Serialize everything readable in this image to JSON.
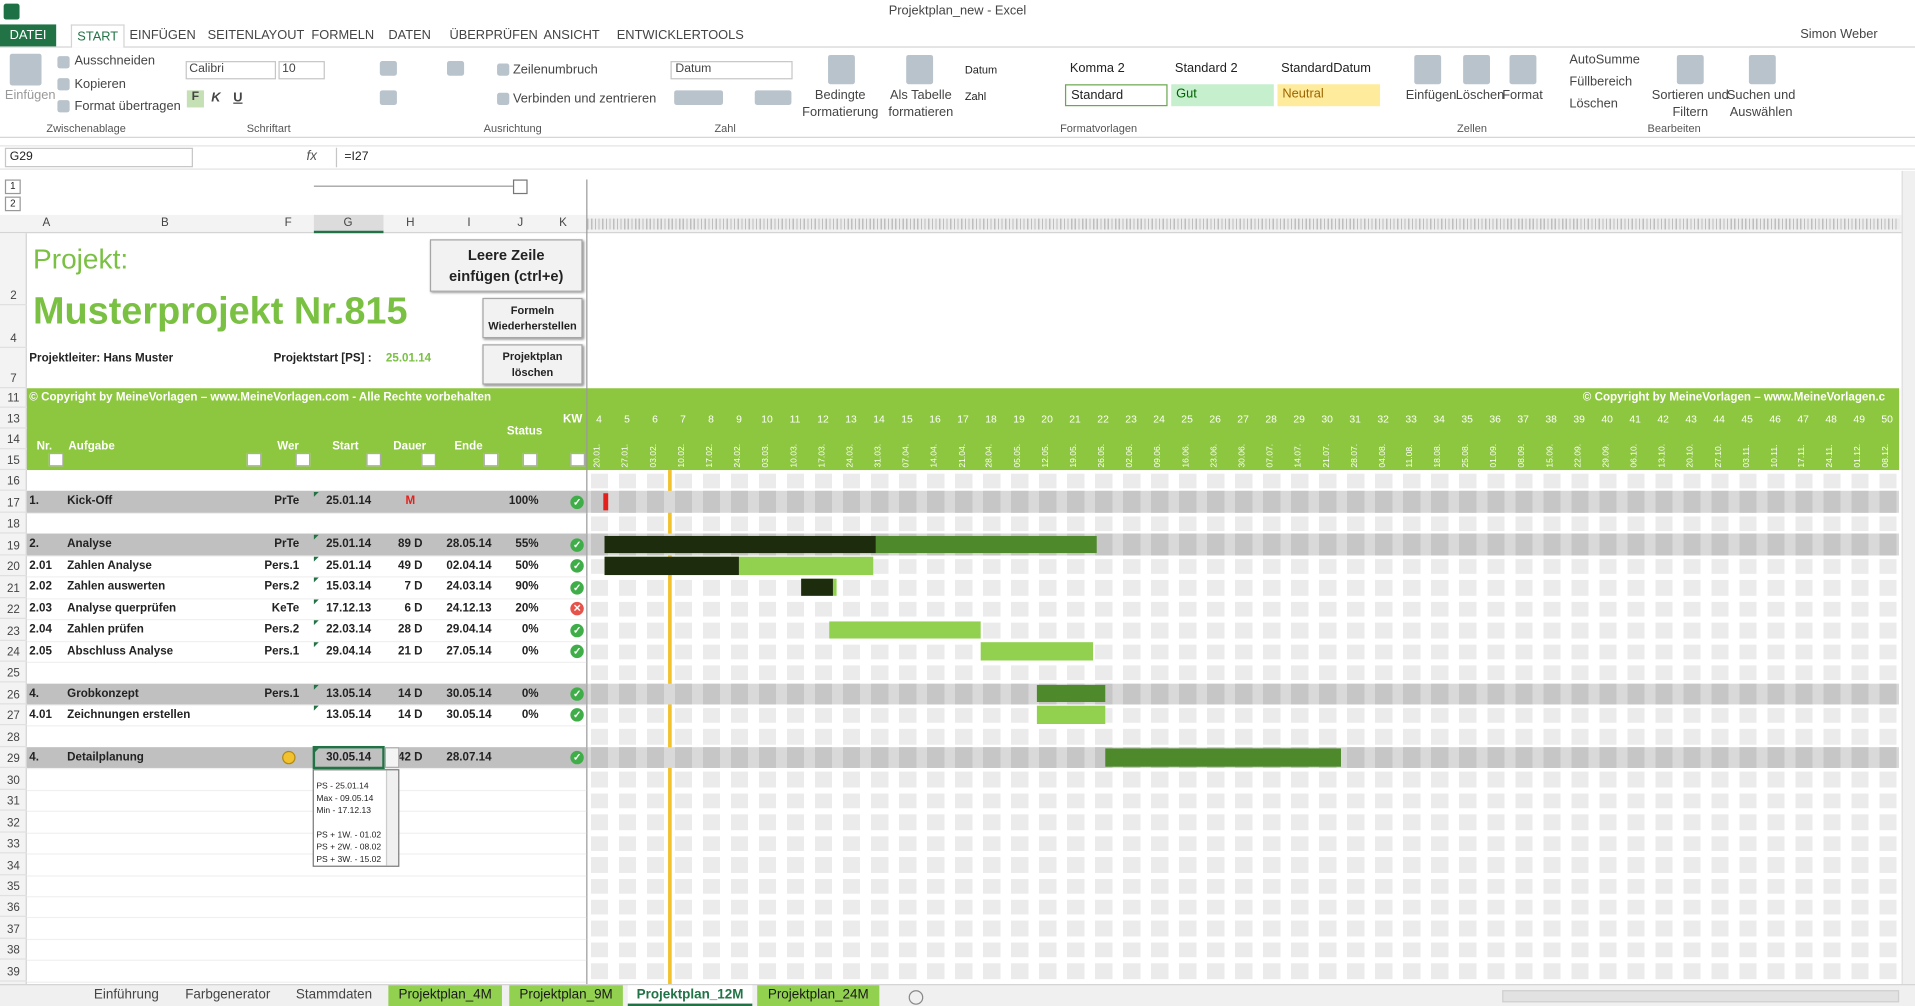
{
  "title_bar": {
    "title": "Projektplan_new - Excel",
    "user": "Simon Weber"
  },
  "ribbon": {
    "tabs": [
      "DATEI",
      "START",
      "EINFÜGEN",
      "SEITENLAYOUT",
      "FORMELN",
      "DATEN",
      "ÜBERPRÜFEN",
      "ANSICHT",
      "ENTWICKLERTOOLS"
    ],
    "clipboard": {
      "paste": "Einfügen",
      "cut": "Ausschneiden",
      "copy": "Kopieren",
      "painter": "Format übertragen",
      "group": "Zwischenablage"
    },
    "font": {
      "name": "Calibri",
      "size": "10",
      "bold": "F",
      "italic": "K",
      "underline": "U",
      "group": "Schriftart"
    },
    "alignment": {
      "wrap": "Zeilenumbruch",
      "merge": "Verbinden und zentrieren",
      "group": "Ausrichtung"
    },
    "number": {
      "format": "Datum",
      "group": "Zahl"
    },
    "styles": {
      "conditional": "Bedingte Formatierung",
      "table": "Als Tabelle formatieren",
      "cells": [
        "Datum",
        "Komma 2",
        "Standard 2",
        "StandardDatum",
        "Zahl",
        "Standard",
        "Gut",
        "Neutral"
      ],
      "group": "Formatvorlagen"
    },
    "cells": {
      "insert": "Einfügen",
      "delete": "Löschen",
      "format": "Format",
      "group": "Zellen"
    },
    "editing": {
      "autosum": "AutoSumme",
      "fill": "Füllbereich",
      "clear": "Löschen",
      "sort": "Sortieren und Filtern",
      "find": "Suchen und Auswählen",
      "group": "Bearbeiten"
    }
  },
  "formula_bar": {
    "name_box": "G29",
    "fx": "fx",
    "formula": "=I27"
  },
  "outline_levels": [
    1,
    2
  ],
  "columns": [
    "A",
    "B",
    "F",
    "G",
    "H",
    "I",
    "J",
    "K"
  ],
  "row_headers": [
    2,
    4,
    7,
    11,
    13,
    14,
    15,
    16,
    17,
    18,
    19,
    20,
    21,
    22,
    23,
    24,
    25,
    26,
    27,
    28,
    29,
    30,
    31,
    32,
    33,
    34,
    35,
    36,
    37,
    38,
    39
  ],
  "project": {
    "label": "Projekt:",
    "name": "Musterprojekt Nr.815",
    "leader": "Projektleiter: Hans Muster",
    "start_label": "Projektstart [PS] :",
    "start": "25.01.14",
    "copyright_left": "© Copyright by MeineVorlagen – www.MeineVorlagen.com - Alle Rechte vorbehalten",
    "copyright_right": "© Copyright by MeineVorlagen – www.MeineVorlagen.c"
  },
  "buttons": [
    "Leere Zeile einfügen (ctrl+e)",
    "Formeln Wiederherstellen",
    "Projektplan löschen"
  ],
  "table_header": {
    "nr": "Nr.",
    "task": "Aufgabe",
    "who": "Wer",
    "start": "Start",
    "duration": "Dauer",
    "end": "Ende",
    "status": "Status",
    "kw": "KW"
  },
  "timeline": {
    "kw": [
      4,
      5,
      6,
      7,
      8,
      9,
      10,
      11,
      12,
      13,
      14,
      15,
      16,
      17,
      18,
      19,
      20,
      21,
      22,
      23,
      24,
      25,
      26,
      27,
      28,
      29,
      30,
      31,
      32,
      33,
      34,
      35,
      36,
      37,
      38,
      39,
      40,
      41,
      42,
      43,
      44,
      45,
      46,
      47,
      48,
      49,
      50
    ],
    "week_dates": [
      "20.01.",
      "27.01.",
      "03.02.",
      "10.02.",
      "17.02.",
      "24.02.",
      "03.03.",
      "10.03.",
      "17.03.",
      "24.03.",
      "31.03.",
      "07.04.",
      "14.04.",
      "21.04.",
      "28.04.",
      "05.05.",
      "12.05.",
      "19.05.",
      "26.05.",
      "02.06.",
      "09.06.",
      "16.06.",
      "23.06.",
      "30.06.",
      "07.07.",
      "14.07.",
      "21.07.",
      "28.07.",
      "04.08.",
      "11.08.",
      "18.08.",
      "25.08.",
      "01.09.",
      "08.09.",
      "15.09.",
      "22.09.",
      "29.09.",
      "06.10.",
      "13.10.",
      "20.10.",
      "27.10.",
      "03.11.",
      "10.11.",
      "17.11.",
      "24.11.",
      "01.12.",
      "08.12."
    ]
  },
  "bar_colors": {
    "summary": "#4e8a2c",
    "task": "#92d050",
    "progress": "#1e2c0e",
    "milestone": "#e3201b"
  },
  "icon_colors": {
    "check": "#3fae49",
    "cross": "#e5534b"
  },
  "tasks": [
    {
      "row": 17,
      "nr": "1.",
      "task": "Kick-Off",
      "who": "PrTe",
      "start": "25.01.14",
      "duration": "M",
      "end": "",
      "status": "100%",
      "summary": true,
      "milestone": true,
      "status_icon": "check"
    },
    {
      "row": 19,
      "nr": "2.",
      "task": "Analyse",
      "who": "PrTe",
      "start": "25.01.14",
      "duration": "89 D",
      "end": "28.05.14",
      "status": "55%",
      "summary": true,
      "status_icon": "check"
    },
    {
      "row": 20,
      "nr": "2.01",
      "task": "Zahlen Analyse",
      "who": "Pers.1",
      "start": "25.01.14",
      "duration": "49 D",
      "end": "02.04.14",
      "status": "50%",
      "summary": false,
      "status_icon": "check"
    },
    {
      "row": 21,
      "nr": "2.02",
      "task": "Zahlen auswerten",
      "who": "Pers.2",
      "start": "15.03.14",
      "duration": "7 D",
      "end": "24.03.14",
      "status": "90%",
      "summary": false,
      "status_icon": "check"
    },
    {
      "row": 22,
      "nr": "2.03",
      "task": "Analyse querprüfen",
      "who": "KeTe",
      "start": "17.12.13",
      "duration": "6 D",
      "end": "24.12.13",
      "status": "20%",
      "summary": false,
      "status_icon": "cross"
    },
    {
      "row": 23,
      "nr": "2.04",
      "task": "Zahlen prüfen",
      "who": "Pers.2",
      "start": "22.03.14",
      "duration": "28 D",
      "end": "29.04.14",
      "status": "0%",
      "summary": false,
      "status_icon": "check"
    },
    {
      "row": 24,
      "nr": "2.05",
      "task": "Abschluss Analyse",
      "who": "Pers.1",
      "start": "29.04.14",
      "duration": "21 D",
      "end": "27.05.14",
      "status": "0%",
      "summary": false,
      "status_icon": "check"
    },
    {
      "row": 26,
      "nr": "4.",
      "task": "Grobkonzept",
      "who": "Pers.1",
      "start": "13.05.14",
      "duration": "14 D",
      "end": "30.05.14",
      "status": "0%",
      "summary": true,
      "status_icon": "check"
    },
    {
      "row": 27,
      "nr": "4.01",
      "task": "Zeichnungen erstellen",
      "who": "",
      "start": "13.05.14",
      "duration": "14 D",
      "end": "30.05.14",
      "status": "0%",
      "summary": false,
      "status_icon": "check"
    },
    {
      "row": 29,
      "nr": "4.",
      "task": "Detailplanung",
      "who": "",
      "start": "30.05.14",
      "duration": "42 D",
      "end": "28.07.14",
      "status": "",
      "summary": true,
      "status_icon": "check"
    }
  ],
  "dropdown": [
    "PS - 25.01.14",
    "Max - 09.05.14",
    "Min - 17.12.13",
    "PS + 1W. - 01.02",
    "PS + 2W. - 08.02",
    "PS + 3W. - 15.02"
  ],
  "sheet_tabs": [
    "Einführung",
    "Farbgenerator",
    "Stammdaten",
    "Projektplan_4M",
    "Projektplan_9M",
    "Projektplan_12M",
    "Projektplan_24M"
  ]
}
